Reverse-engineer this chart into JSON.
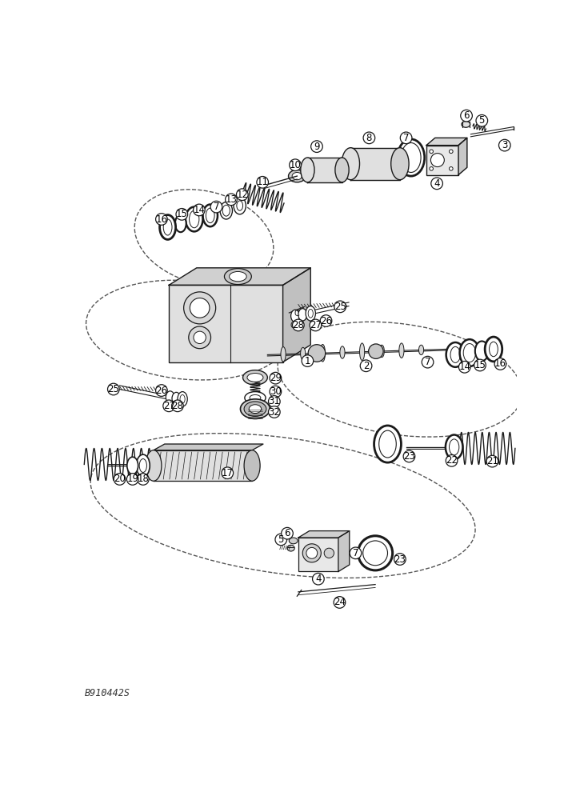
{
  "background_color": "#ffffff",
  "figure_id": "B910442S",
  "line_color": "#1a1a1a",
  "label_font_size": 8.5,
  "lw": 1.0
}
